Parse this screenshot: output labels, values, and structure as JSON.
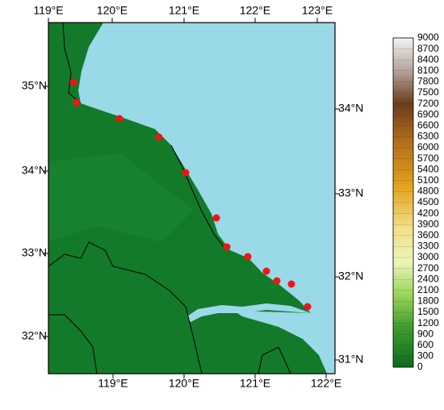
{
  "axes": {
    "top": [
      "119°E",
      "120°E",
      "121°E",
      "122°E",
      "123°E"
    ],
    "bottom": [
      "119°E",
      "120°E",
      "121°E",
      "122°E"
    ],
    "left": [
      "35°N",
      "34°N",
      "33°N",
      "32°N"
    ],
    "right": [
      "34°N",
      "33°N",
      "32°N",
      "31°N"
    ]
  },
  "colorbar": {
    "labels": [
      0,
      300,
      600,
      900,
      1200,
      1500,
      1800,
      2100,
      2400,
      2700,
      3000,
      3300,
      3600,
      3900,
      4200,
      4500,
      4800,
      5100,
      5400,
      5700,
      6000,
      6300,
      6600,
      6900,
      7200,
      7500,
      7800,
      8100,
      8400,
      8700,
      9000
    ]
  }
}
